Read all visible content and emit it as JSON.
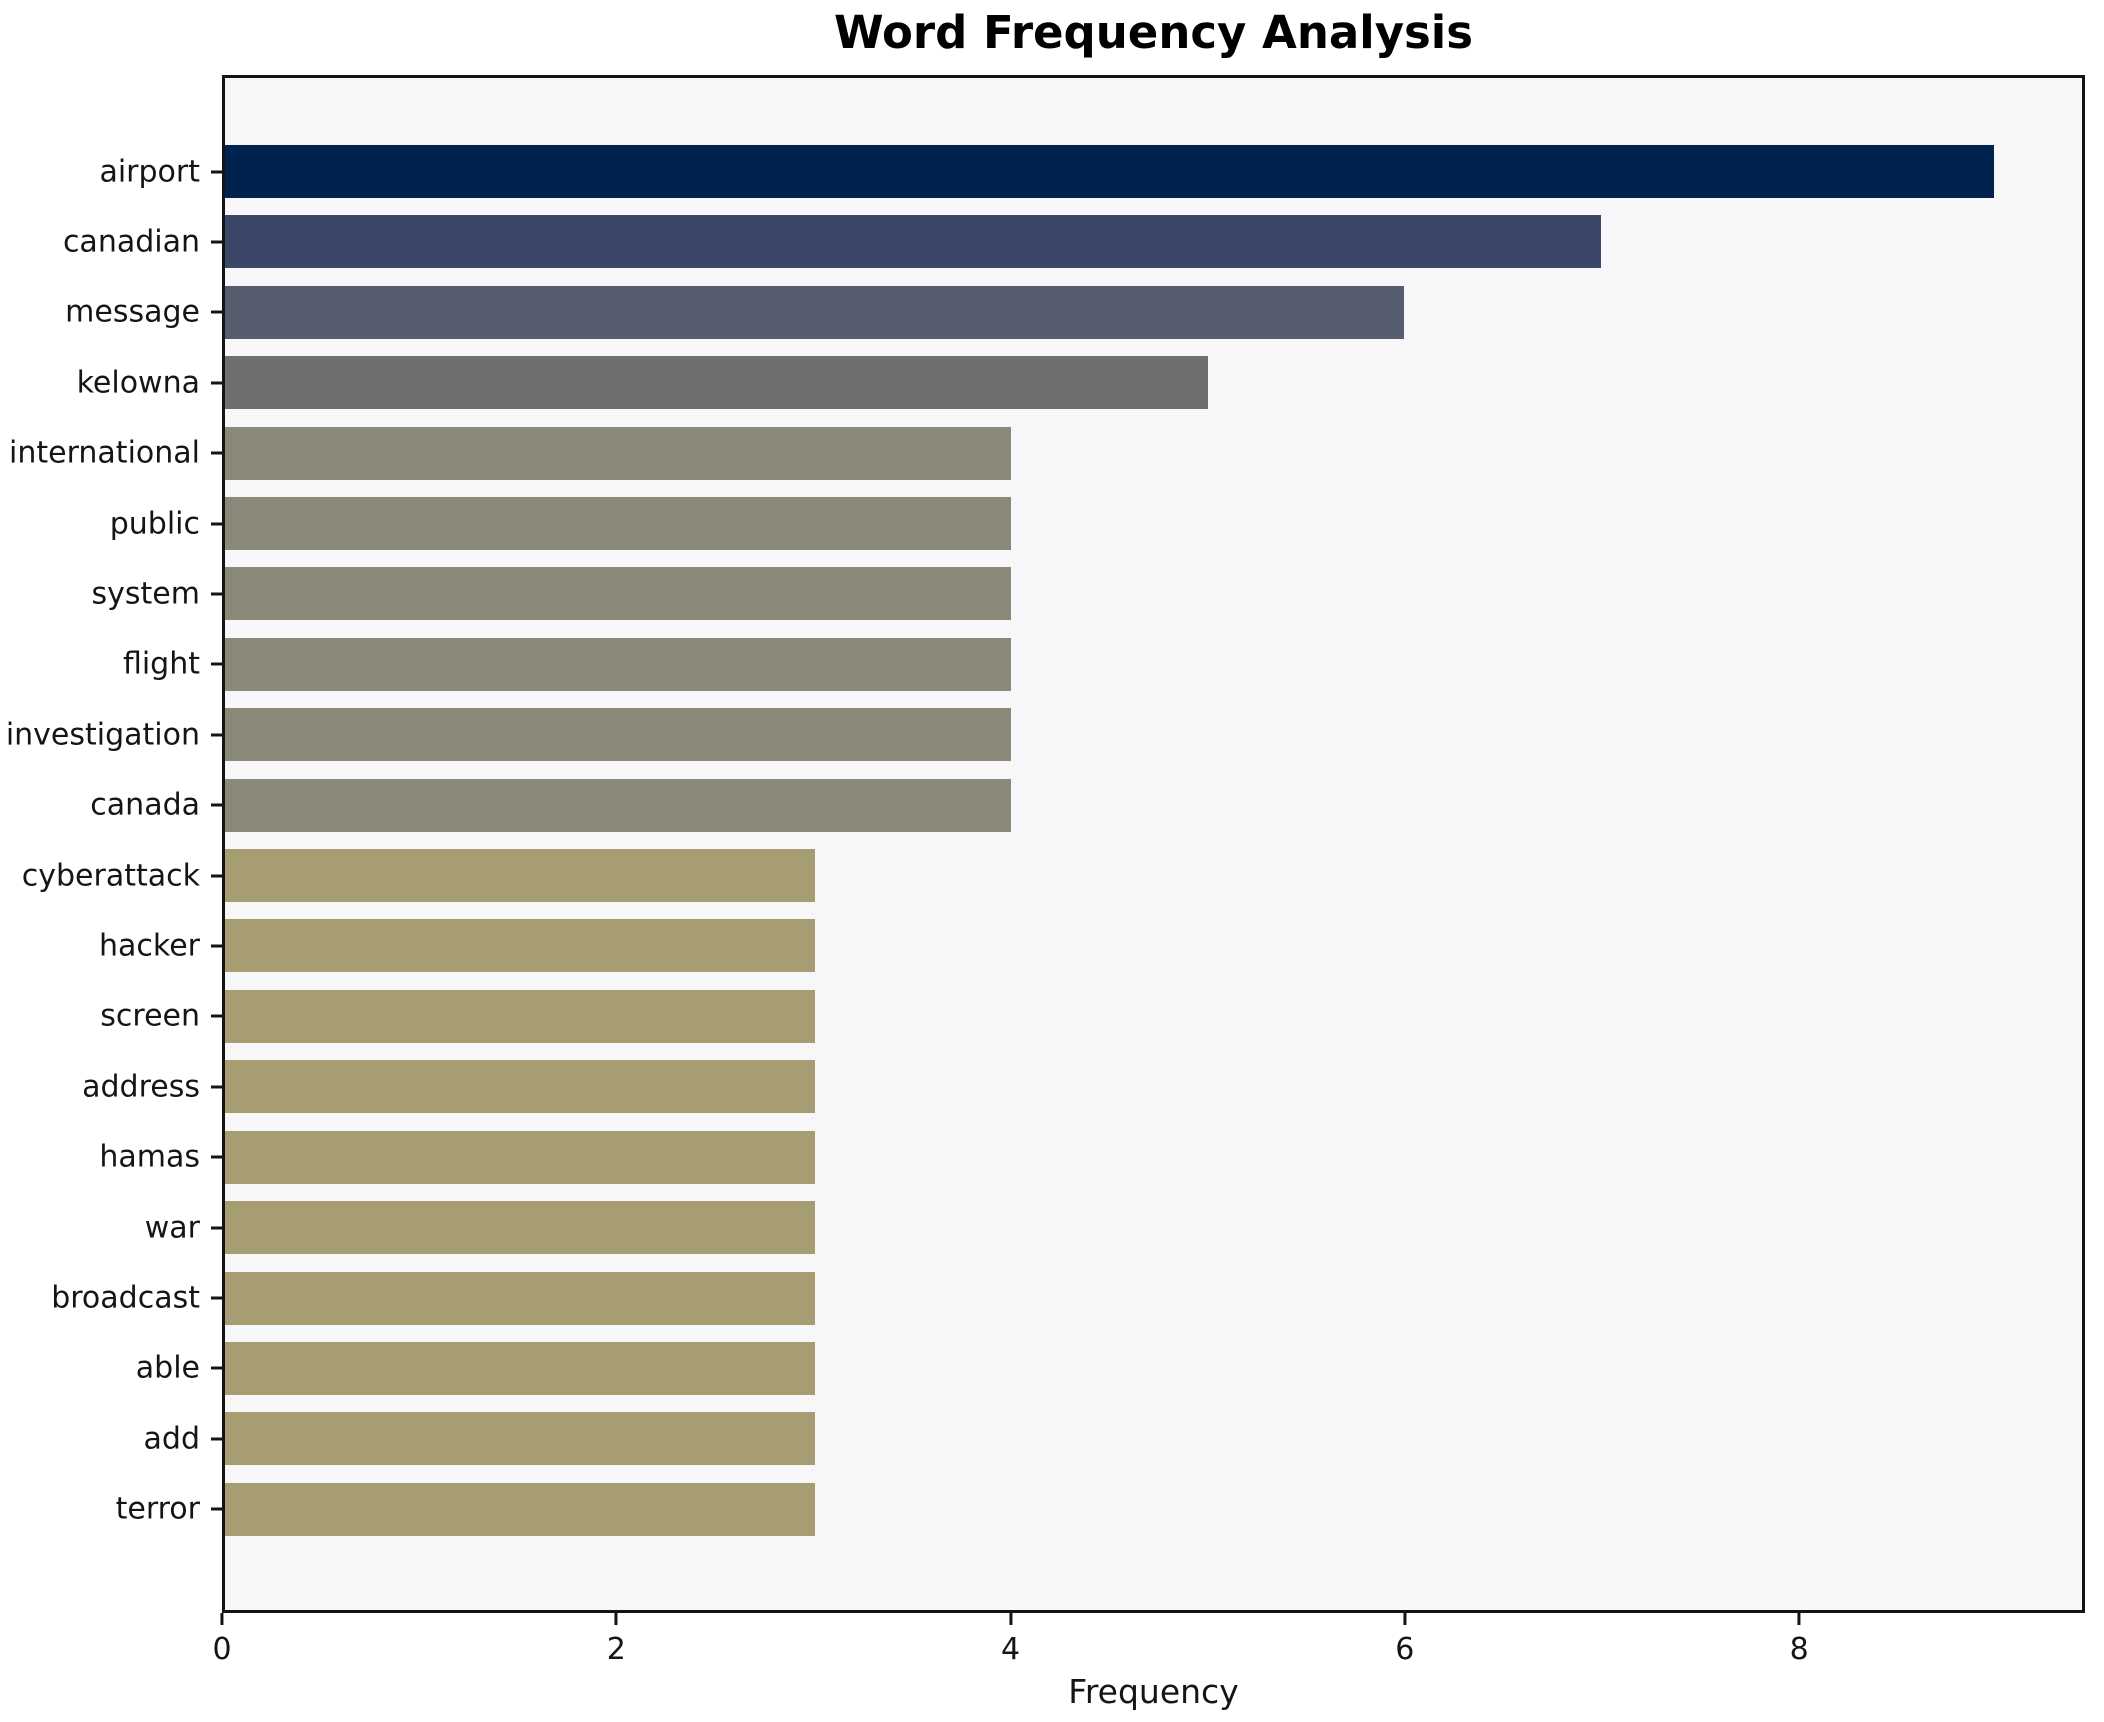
{
  "title": "Word Frequency Analysis",
  "chart_data": {
    "type": "bar",
    "orientation": "horizontal",
    "title": "Word Frequency Analysis",
    "xlabel": "Frequency",
    "ylabel": "",
    "categories": [
      "airport",
      "canadian",
      "message",
      "kelowna",
      "international",
      "public",
      "system",
      "flight",
      "investigation",
      "canada",
      "cyberattack",
      "hacker",
      "screen",
      "address",
      "hamas",
      "war",
      "broadcast",
      "able",
      "add",
      "terror"
    ],
    "values": [
      9,
      7,
      6,
      5,
      4,
      4,
      4,
      4,
      4,
      4,
      3,
      3,
      3,
      3,
      3,
      3,
      3,
      3,
      3,
      3
    ],
    "xlim": [
      0,
      9.45
    ],
    "xticks": [
      0,
      2,
      4,
      6,
      8
    ],
    "grid": false,
    "legend_position": "none"
  },
  "style": {
    "value_colors": {
      "9": "#00224e",
      "7": "#3b4769",
      "6": "#565d6f",
      "5": "#6e6f71",
      "4": "#8a8878",
      "3": "#a69d72"
    },
    "plot_background": "#f7f7f9",
    "figure_background": "#ffffff",
    "spine_color": "#141414",
    "text_color": "#151515"
  }
}
